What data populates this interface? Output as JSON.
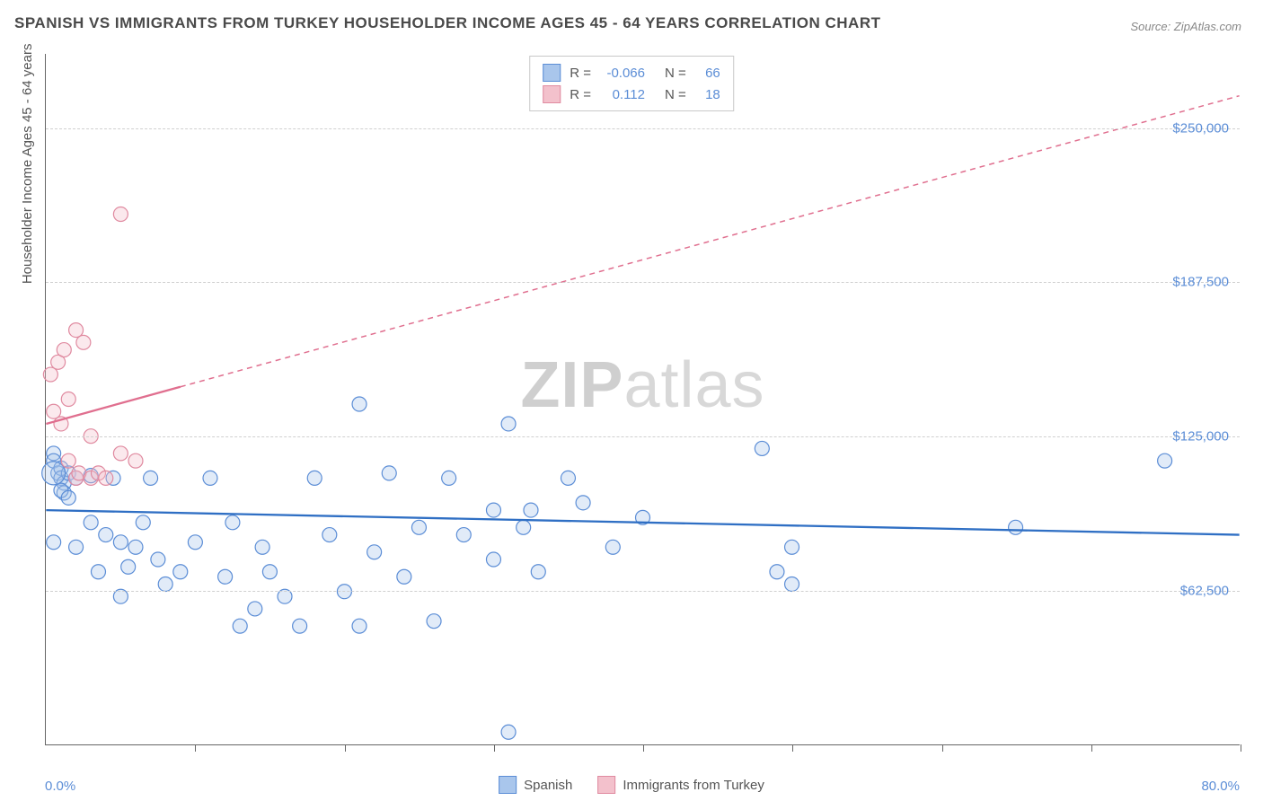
{
  "title": "SPANISH VS IMMIGRANTS FROM TURKEY HOUSEHOLDER INCOME AGES 45 - 64 YEARS CORRELATION CHART",
  "source": "Source: ZipAtlas.com",
  "y_axis_title": "Householder Income Ages 45 - 64 years",
  "watermark_bold": "ZIP",
  "watermark_rest": "atlas",
  "chart": {
    "type": "scatter",
    "background_color": "#ffffff",
    "grid_color": "#d0d0d0",
    "axis_color": "#666666",
    "text_color": "#555555",
    "value_color": "#5b8dd6",
    "xlim": [
      0,
      80
    ],
    "ylim": [
      0,
      280000
    ],
    "x_tick_positions": [
      0,
      10,
      20,
      30,
      40,
      50,
      60,
      70,
      80
    ],
    "y_gridlines": [
      62500,
      125000,
      187500,
      250000
    ],
    "y_tick_labels": [
      "$62,500",
      "$125,000",
      "$187,500",
      "$250,000"
    ],
    "x_min_label": "0.0%",
    "x_max_label": "80.0%",
    "marker_radius": 8,
    "marker_radius_large": 13,
    "marker_fill_opacity": 0.35,
    "marker_stroke_width": 1.2,
    "trend_line_width": 2.3,
    "trend_dash": "6 5",
    "series": [
      {
        "name": "Spanish",
        "color_fill": "#a9c6ec",
        "color_stroke": "#5b8dd6",
        "trend_color": "#2f6fc4",
        "trend_solid_x": [
          0,
          80
        ],
        "trend_solid_y": [
          95000,
          85000
        ],
        "trend_dash_x": null,
        "trend_dash_y": null,
        "R": "-0.066",
        "N": "66",
        "points": [
          [
            0.5,
            118000
          ],
          [
            0.5,
            115000
          ],
          [
            0.8,
            110000
          ],
          [
            1.0,
            112000
          ],
          [
            1.0,
            108000
          ],
          [
            1.2,
            106000
          ],
          [
            1.2,
            102000
          ],
          [
            1.5,
            110000
          ],
          [
            1.0,
            103000
          ],
          [
            1.5,
            100000
          ],
          [
            0.5,
            82000
          ],
          [
            2.0,
            108000
          ],
          [
            2.0,
            80000
          ],
          [
            3.0,
            109000
          ],
          [
            3.0,
            90000
          ],
          [
            3.5,
            70000
          ],
          [
            4.0,
            85000
          ],
          [
            4.5,
            108000
          ],
          [
            5.0,
            82000
          ],
          [
            5.5,
            72000
          ],
          [
            5.0,
            60000
          ],
          [
            6.0,
            80000
          ],
          [
            6.5,
            90000
          ],
          [
            7.0,
            108000
          ],
          [
            7.5,
            75000
          ],
          [
            8.0,
            65000
          ],
          [
            9.0,
            70000
          ],
          [
            10.0,
            82000
          ],
          [
            11.0,
            108000
          ],
          [
            12.0,
            68000
          ],
          [
            12.5,
            90000
          ],
          [
            13.0,
            48000
          ],
          [
            14.0,
            55000
          ],
          [
            14.5,
            80000
          ],
          [
            15.0,
            70000
          ],
          [
            16.0,
            60000
          ],
          [
            17.0,
            48000
          ],
          [
            18.0,
            108000
          ],
          [
            19.0,
            85000
          ],
          [
            20.0,
            62000
          ],
          [
            21.0,
            48000
          ],
          [
            21.0,
            138000
          ],
          [
            22.0,
            78000
          ],
          [
            23.0,
            110000
          ],
          [
            24.0,
            68000
          ],
          [
            25.0,
            88000
          ],
          [
            26.0,
            50000
          ],
          [
            27.0,
            108000
          ],
          [
            28.0,
            85000
          ],
          [
            30.0,
            95000
          ],
          [
            30.0,
            75000
          ],
          [
            31.0,
            130000
          ],
          [
            32.0,
            88000
          ],
          [
            32.5,
            95000
          ],
          [
            33.0,
            70000
          ],
          [
            35.0,
            108000
          ],
          [
            36.0,
            98000
          ],
          [
            38.0,
            80000
          ],
          [
            40.0,
            92000
          ],
          [
            48.0,
            120000
          ],
          [
            49.0,
            70000
          ],
          [
            50.0,
            80000
          ],
          [
            50.0,
            65000
          ],
          [
            65.0,
            88000
          ],
          [
            75.0,
            115000
          ],
          [
            31.0,
            5000
          ]
        ],
        "large_points": [
          [
            0.5,
            110000
          ]
        ]
      },
      {
        "name": "Immigrants from Turkey",
        "color_fill": "#f3c1cc",
        "color_stroke": "#e08aa0",
        "trend_color": "#e06f8f",
        "trend_solid_x": [
          0,
          9
        ],
        "trend_solid_y": [
          130000,
          145000
        ],
        "trend_dash_x": [
          9,
          80
        ],
        "trend_dash_y": [
          145000,
          263000
        ],
        "R": "0.112",
        "N": "18",
        "points": [
          [
            0.3,
            150000
          ],
          [
            0.5,
            135000
          ],
          [
            0.8,
            155000
          ],
          [
            1.0,
            130000
          ],
          [
            1.2,
            160000
          ],
          [
            1.5,
            140000
          ],
          [
            1.5,
            115000
          ],
          [
            2.0,
            168000
          ],
          [
            2.0,
            108000
          ],
          [
            2.2,
            110000
          ],
          [
            2.5,
            163000
          ],
          [
            3.0,
            125000
          ],
          [
            3.0,
            108000
          ],
          [
            3.5,
            110000
          ],
          [
            4.0,
            108000
          ],
          [
            5.0,
            118000
          ],
          [
            6.0,
            115000
          ],
          [
            5.0,
            215000
          ]
        ],
        "large_points": []
      }
    ],
    "bottom_legend": [
      {
        "label": "Spanish",
        "fill": "#a9c6ec",
        "stroke": "#5b8dd6"
      },
      {
        "label": "Immigrants from Turkey",
        "fill": "#f3c1cc",
        "stroke": "#e08aa0"
      }
    ]
  }
}
